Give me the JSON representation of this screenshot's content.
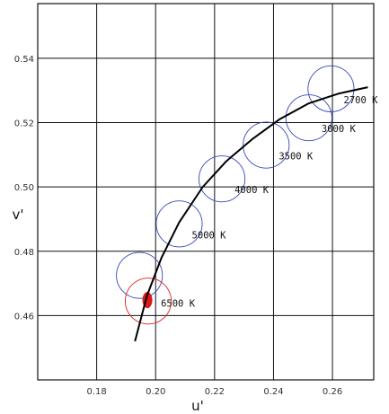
{
  "chart_data": {
    "type": "scatter",
    "title": "",
    "xlabel": "u'",
    "ylabel": "v'",
    "xlim": [
      0.16,
      0.274
    ],
    "ylim": [
      0.44,
      0.557
    ],
    "xticks": [
      0.18,
      0.2,
      0.22,
      0.24,
      0.26
    ],
    "yticks": [
      0.46,
      0.48,
      0.5,
      0.52,
      0.54
    ],
    "xtick_labels": [
      "0.18",
      "0.20",
      "0.22",
      "0.24",
      "0.26"
    ],
    "ytick_labels": [
      "0.46",
      "0.48",
      "0.50",
      "0.52",
      "0.54"
    ],
    "grid": true,
    "planckian_locus": {
      "x": [
        0.193,
        0.197,
        0.202,
        0.208,
        0.216,
        0.224,
        0.233,
        0.242,
        0.252,
        0.262,
        0.272
      ],
      "y": [
        0.452,
        0.466,
        0.478,
        0.489,
        0.5,
        0.508,
        0.515,
        0.521,
        0.526,
        0.529,
        0.531
      ]
    },
    "ellipses": [
      {
        "label": "2700 K",
        "u": 0.2595,
        "v": 0.5305,
        "highlight": false
      },
      {
        "label": "3000 K",
        "u": 0.252,
        "v": 0.5215,
        "highlight": false
      },
      {
        "label": "3500 K",
        "u": 0.2375,
        "v": 0.513,
        "highlight": false
      },
      {
        "label": "4000 K",
        "u": 0.2225,
        "v": 0.5025,
        "highlight": false
      },
      {
        "label": "5000 K",
        "u": 0.208,
        "v": 0.4885,
        "highlight": false
      },
      {
        "label": "",
        "u": 0.1945,
        "v": 0.4725,
        "highlight": false
      },
      {
        "label": "6500 K",
        "u": 0.1975,
        "v": 0.4645,
        "highlight": true
      }
    ],
    "measured_point": {
      "u": 0.1972,
      "v": 0.4648
    },
    "colors": {
      "locus": "#000000",
      "ellipse": "#3848b8",
      "highlight": "#e02020",
      "point": "#e01818",
      "grid": "#111111"
    }
  }
}
